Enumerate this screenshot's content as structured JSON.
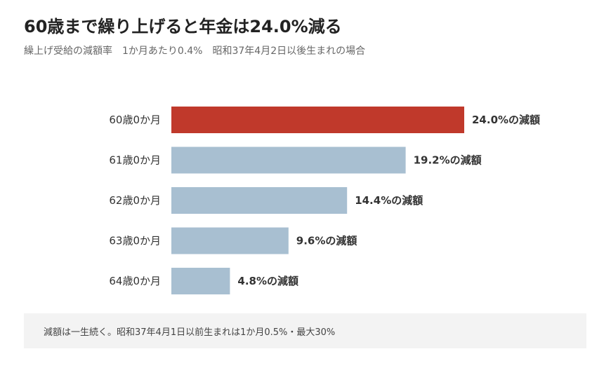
{
  "title": "60歳まで繰り上げると年金は24.0%減る",
  "subtitle": "繰上げ受給の減額率　1か月あたり0.4%　昭和37年4月2日以後生まれの場合",
  "footnote": "減額は一生続く。昭和37年4月1日以前生まれは1か月0.5%・最大30%",
  "colors": {
    "highlight": "#c0392b",
    "bar": "#a8bfd1",
    "label": "#333333",
    "value": "#333333"
  },
  "chart_data": {
    "type": "bar",
    "orientation": "horizontal",
    "categories": [
      "60歳0か月",
      "61歳0か月",
      "62歳0か月",
      "63歳0か月",
      "64歳0か月"
    ],
    "values": [
      24.0,
      19.2,
      14.4,
      9.6,
      4.8
    ],
    "value_labels": [
      "24.0%の減額",
      "19.2%の減額",
      "14.4%の減額",
      "9.6%の減額",
      "4.8%の減額"
    ],
    "highlight_index": 0,
    "unit": "%",
    "xlim": [
      0,
      24.0
    ],
    "grid": false,
    "legend": "none"
  }
}
